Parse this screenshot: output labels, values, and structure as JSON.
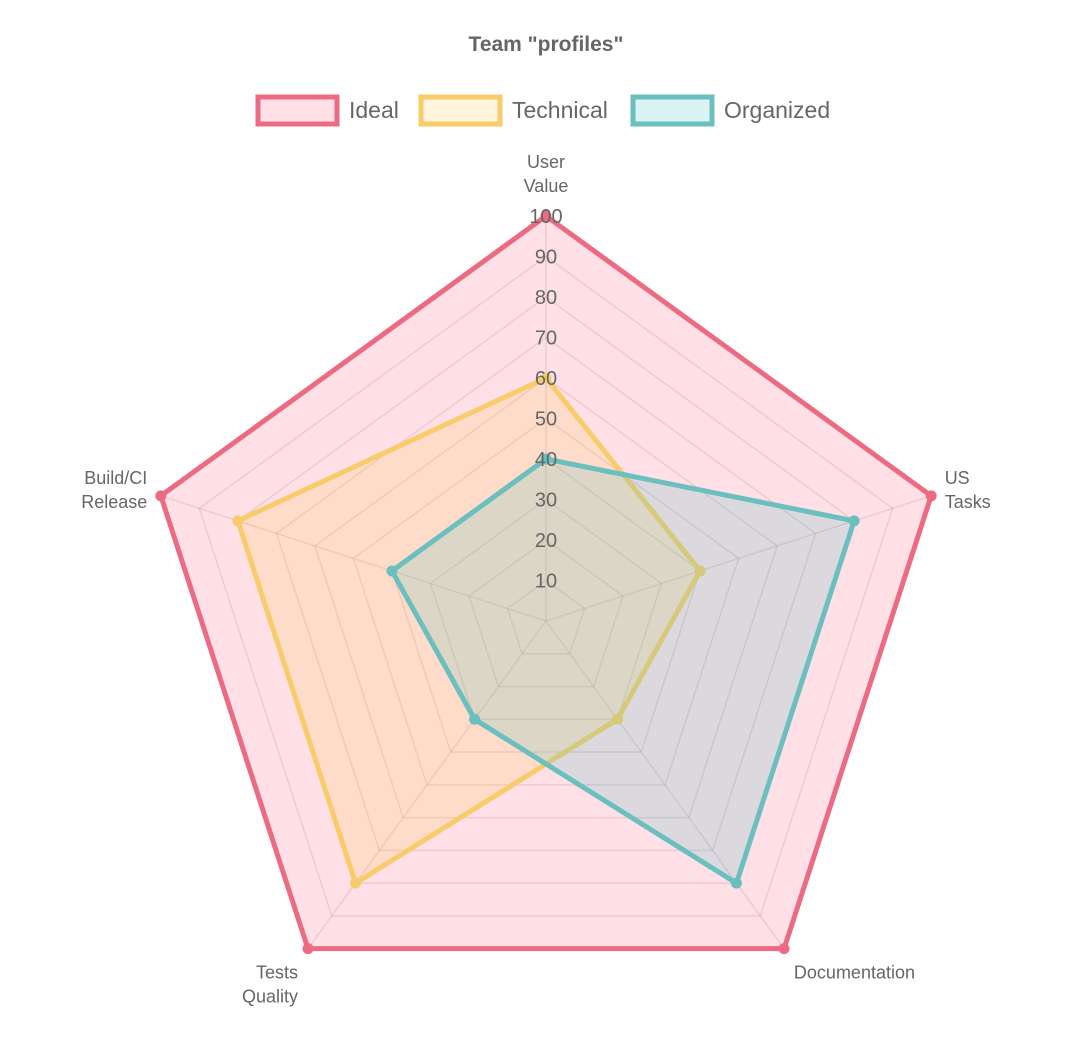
{
  "chart_data": {
    "type": "radar",
    "title": "Team \"profiles\"",
    "axes": [
      [
        "User",
        "Value"
      ],
      [
        "US",
        "Tasks"
      ],
      [
        "Documentation"
      ],
      [
        "Tests",
        "Quality"
      ],
      [
        "Build/CI",
        "Release"
      ]
    ],
    "r_range": [
      0,
      100
    ],
    "ticks": [
      "10",
      "20",
      "30",
      "40",
      "50",
      "60",
      "70",
      "80",
      "90",
      "100"
    ],
    "grid": true,
    "legend_position": "top",
    "series": [
      {
        "name": "Ideal",
        "values": [
          100,
          100,
          100,
          100,
          100
        ],
        "stroke": "#ed6b82",
        "fill": "rgba(255,99,132,0.2)"
      },
      {
        "name": "Technical",
        "values": [
          60,
          40,
          30,
          80,
          80
        ],
        "stroke": "#f8cc6b",
        "fill": "rgba(255,205,86,0.2)"
      },
      {
        "name": "Organized",
        "values": [
          40,
          80,
          80,
          30,
          40
        ],
        "stroke": "#6bbfbf",
        "fill": "rgba(75,192,192,0.2)"
      }
    ]
  }
}
